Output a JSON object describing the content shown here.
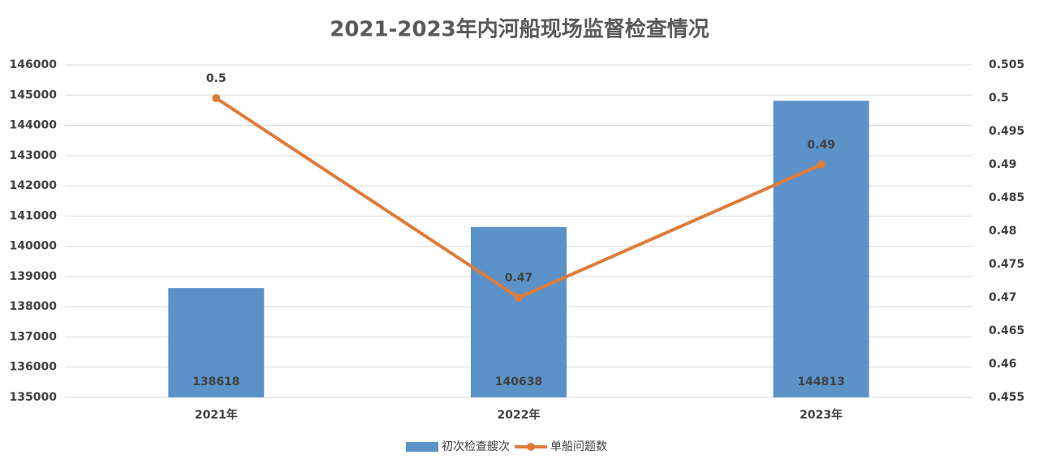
{
  "chart_data": {
    "type": "combo",
    "title": "2021-2023年内河船现场监督检查情况",
    "categories": [
      "2021年",
      "2022年",
      "2023年"
    ],
    "series": [
      {
        "name": "初次检查艘次",
        "type": "bar",
        "color": "#5b93c9",
        "values": [
          138618,
          140638,
          144813
        ]
      },
      {
        "name": "单船问题数",
        "type": "line",
        "axis": "y2",
        "color": "#e07b39",
        "values": [
          0.5,
          0.47,
          0.49
        ]
      }
    ],
    "ylim": [
      135000,
      146000
    ],
    "yticks": [
      135000,
      136000,
      137000,
      138000,
      139000,
      140000,
      141000,
      142000,
      143000,
      144000,
      145000,
      146000
    ],
    "y2lim": [
      0.455,
      0.505
    ],
    "y2ticks": [
      0.455,
      0.46,
      0.465,
      0.47,
      0.475,
      0.48,
      0.485,
      0.49,
      0.495,
      0.5,
      0.505
    ],
    "grid": true,
    "legend": "bottom"
  }
}
